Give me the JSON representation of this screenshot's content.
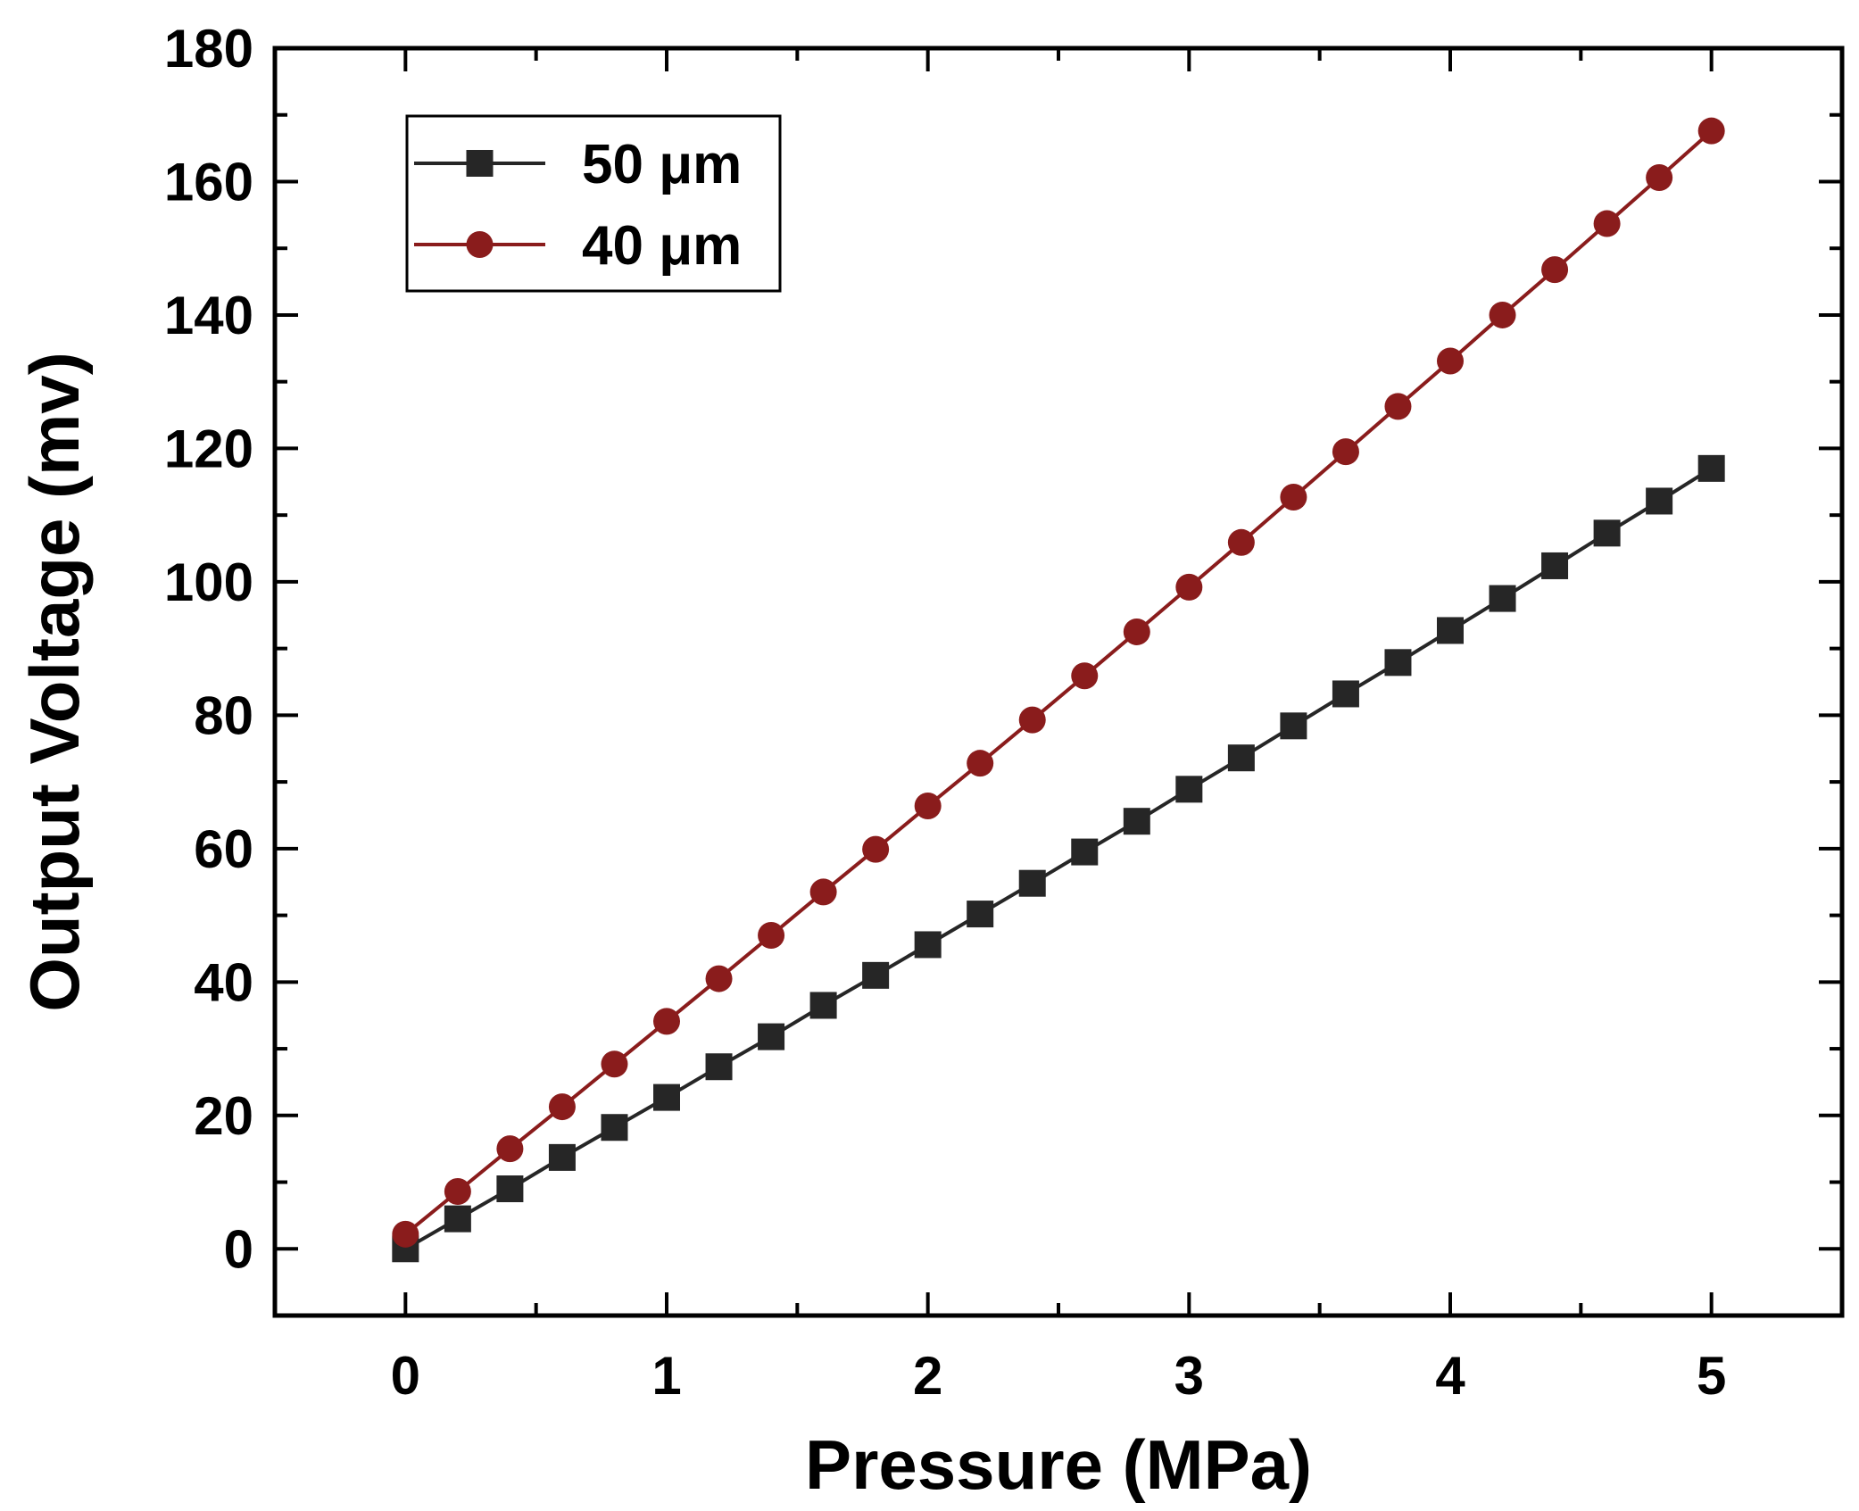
{
  "chart_data": {
    "type": "line",
    "title": "",
    "xlabel": "Pressure (MPa)",
    "ylabel": "Output Voltage (mv)",
    "xlim": [
      -0.5,
      5.5
    ],
    "ylim": [
      -10,
      180
    ],
    "xticks": [
      0,
      1,
      2,
      3,
      4,
      5
    ],
    "xtick_labels": [
      "0",
      "1",
      "2",
      "3",
      "4",
      "5"
    ],
    "yticks": [
      0,
      20,
      40,
      60,
      80,
      100,
      120,
      140,
      160,
      180
    ],
    "ytick_labels": [
      "0",
      "20",
      "40",
      "60",
      "80",
      "100",
      "120",
      "140",
      "160",
      "180"
    ],
    "x_minor_step": 0.5,
    "y_minor_step": 10,
    "grid": false,
    "legend_position": "top-left",
    "x": [
      0,
      0.2,
      0.4,
      0.6,
      0.8,
      1.0,
      1.2,
      1.4,
      1.6,
      1.8,
      2.0,
      2.2,
      2.4,
      2.6,
      2.8,
      3.0,
      3.2,
      3.4,
      3.6,
      3.8,
      4.0,
      4.2,
      4.4,
      4.6,
      4.8,
      5.0
    ],
    "series": [
      {
        "name": "50 μm",
        "marker": "square",
        "color": "#262626",
        "values": [
          0,
          4.5,
          9.0,
          13.7,
          18.2,
          22.7,
          27.3,
          31.8,
          36.5,
          41.0,
          45.6,
          50.2,
          54.8,
          59.5,
          64.1,
          68.9,
          73.6,
          78.4,
          83.2,
          87.9,
          92.7,
          97.5,
          102.4,
          107.3,
          112.1,
          117.0
        ]
      },
      {
        "name": "40 μm",
        "marker": "circle",
        "color": "#8a1c1c",
        "values": [
          2.2,
          8.6,
          15.0,
          21.3,
          27.7,
          34.1,
          40.5,
          47.0,
          53.5,
          59.9,
          66.4,
          72.8,
          79.3,
          85.9,
          92.5,
          99.2,
          105.9,
          112.7,
          119.5,
          126.3,
          133.1,
          140.0,
          146.8,
          153.7,
          160.6,
          167.6
        ]
      }
    ]
  }
}
